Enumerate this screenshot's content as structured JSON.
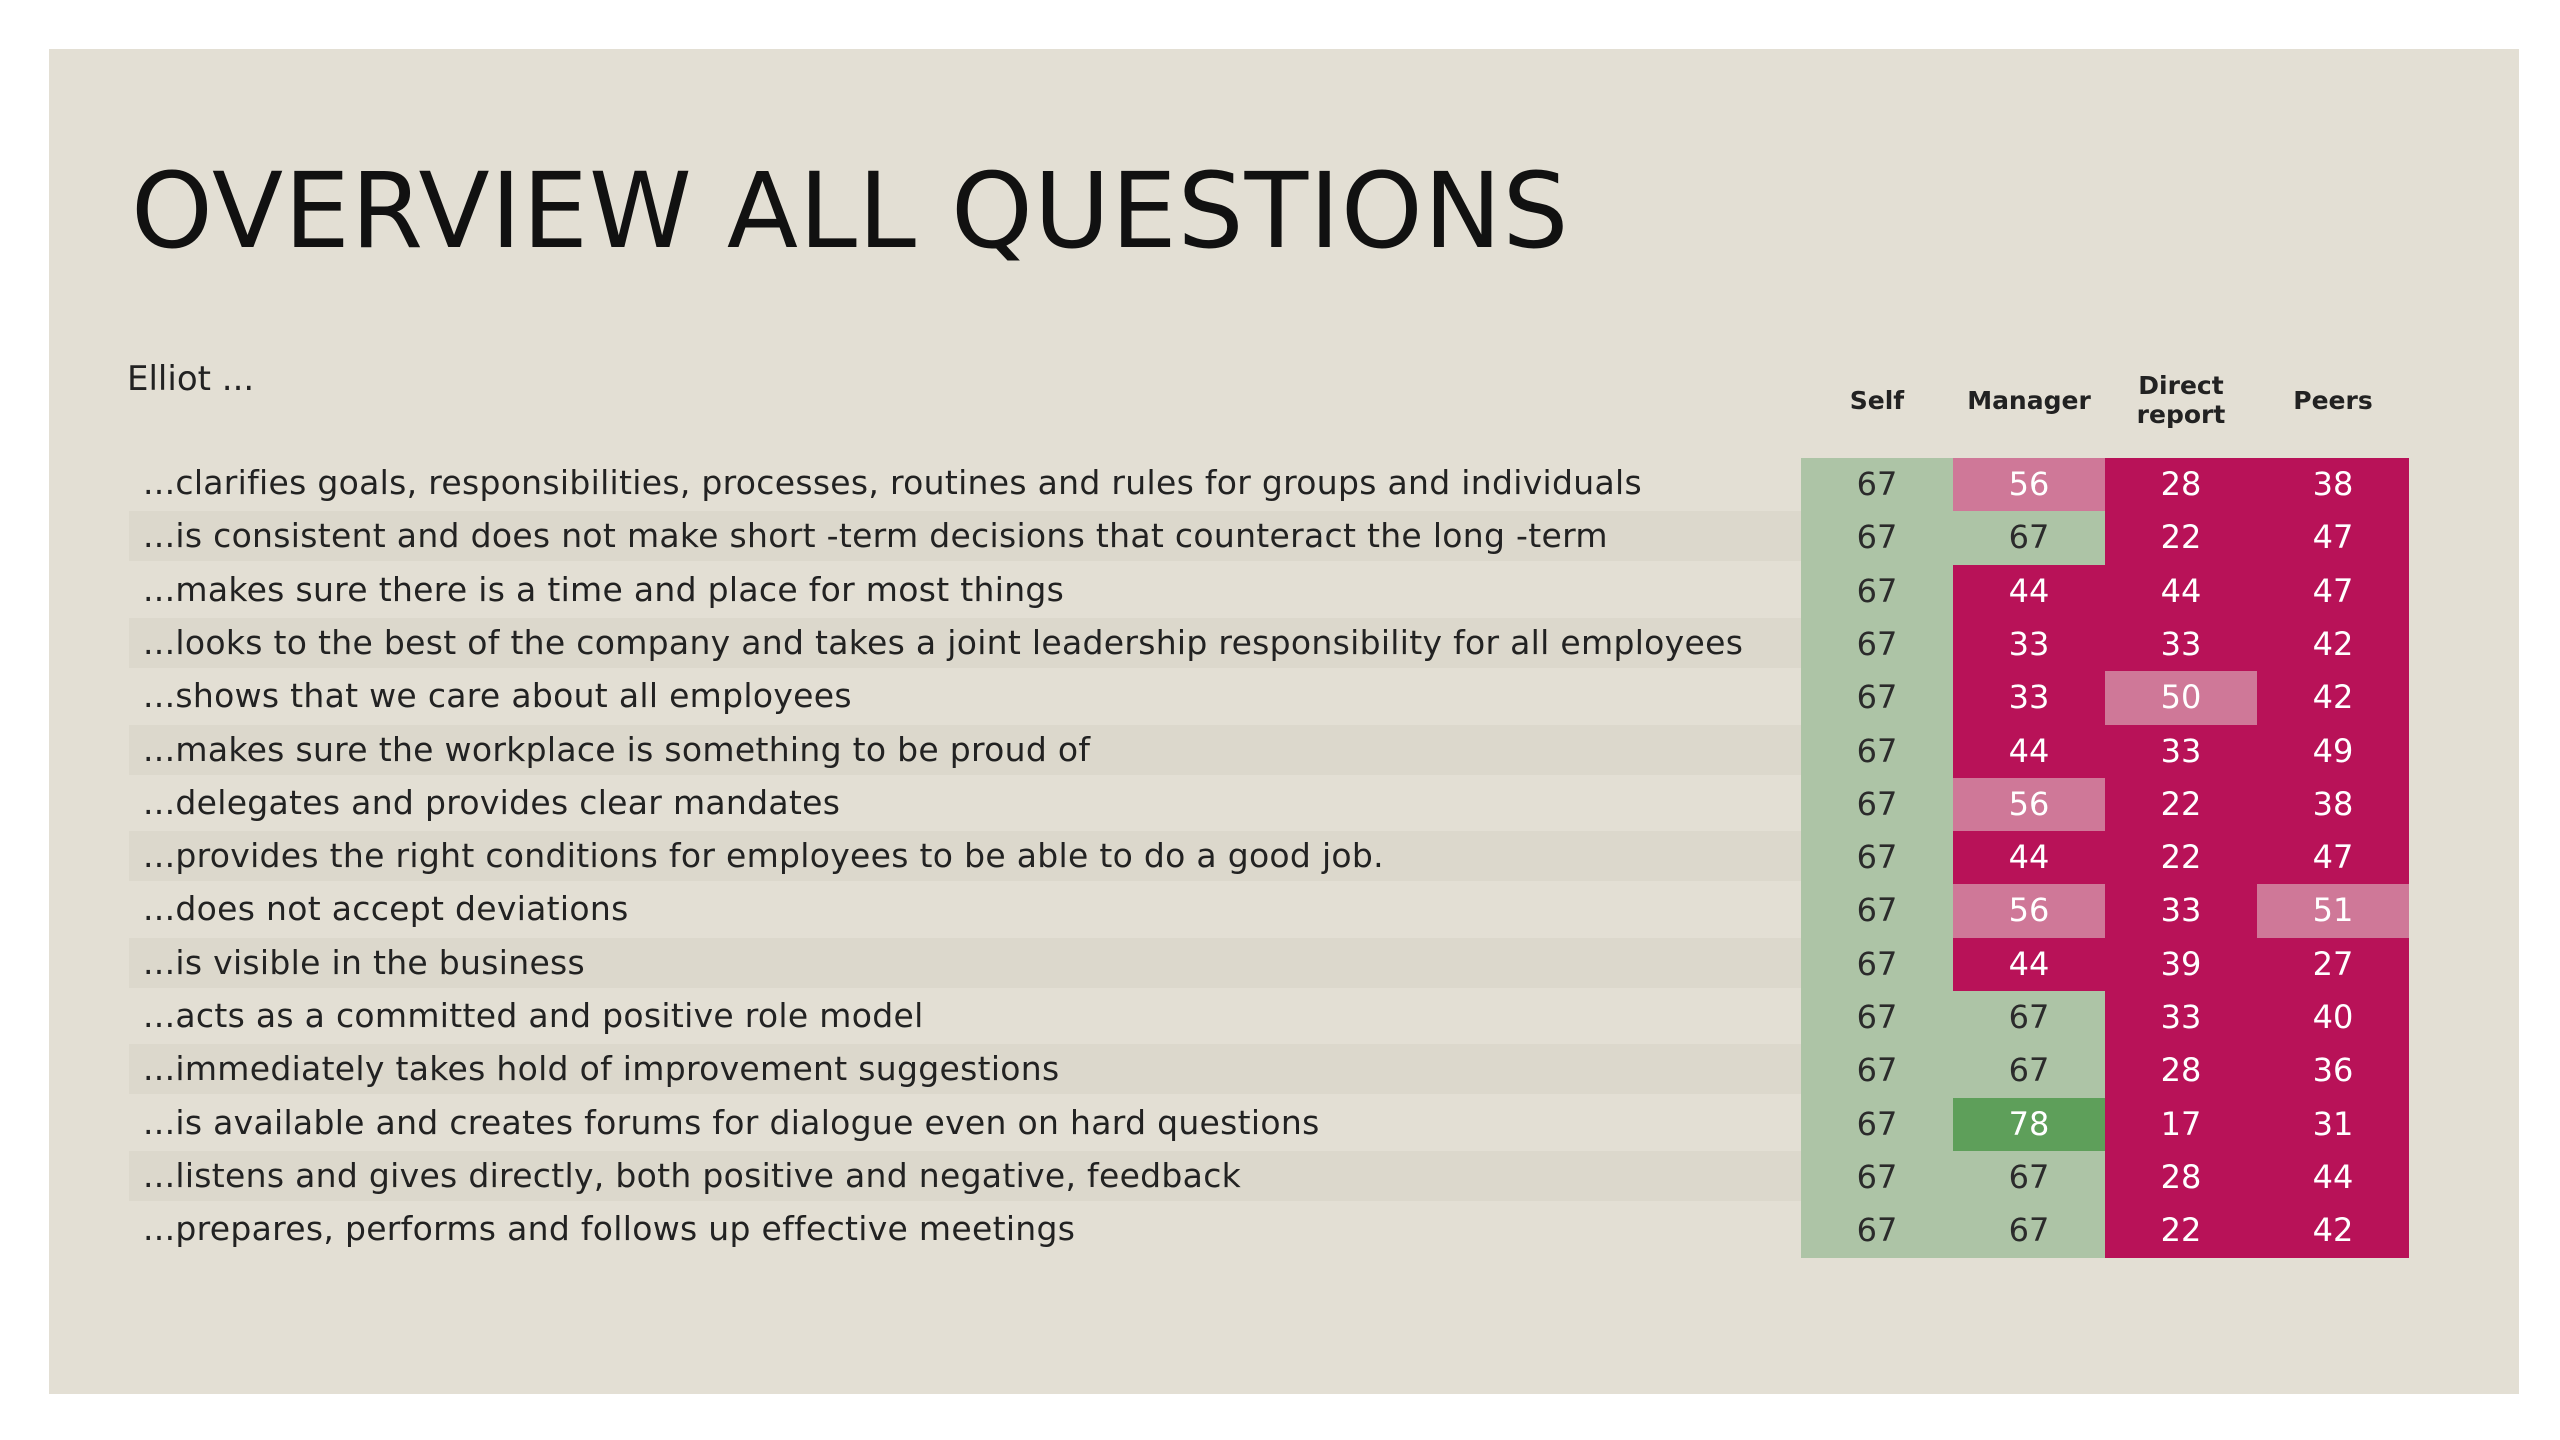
{
  "title": "OVERVIEW ALL QUESTIONS",
  "subject": "Elliot ...",
  "colors": {
    "green_light": "#adc4a6",
    "green_dark": "#5e9f5a",
    "pink_light": "#cf7898",
    "crimson": "#b81258"
  },
  "chart_data": {
    "type": "heatmap",
    "title": "OVERVIEW ALL QUESTIONS",
    "columns": [
      "Self",
      "Manager",
      "Direct report",
      "Peers"
    ],
    "rows": [
      {
        "label": "...clarifies goals, responsibilities, processes, routines and rules for groups and individuals",
        "values": [
          67,
          56,
          28,
          38
        ]
      },
      {
        "label": "...is consistent and does not make short -term decisions that counteract the long -term",
        "values": [
          67,
          67,
          22,
          47
        ]
      },
      {
        "label": "...makes sure there is a time and place for most things",
        "values": [
          67,
          44,
          44,
          47
        ]
      },
      {
        "label": "...looks to the best of the company and takes a joint leadership responsibility for all employees",
        "values": [
          67,
          33,
          33,
          42
        ]
      },
      {
        "label": "...shows that we care about all employees",
        "values": [
          67,
          33,
          50,
          42
        ]
      },
      {
        "label": "...makes sure the workplace is something to be proud of",
        "values": [
          67,
          44,
          33,
          49
        ]
      },
      {
        "label": "...delegates and provides clear mandates",
        "values": [
          67,
          56,
          22,
          38
        ]
      },
      {
        "label": "...provides the right conditions for employees to be able to do a good job.",
        "values": [
          67,
          44,
          22,
          47
        ]
      },
      {
        "label": "...does not accept deviations",
        "values": [
          67,
          56,
          33,
          51
        ]
      },
      {
        "label": "...is visible in the business",
        "values": [
          67,
          44,
          39,
          27
        ]
      },
      {
        "label": "...acts as a committed and positive role model",
        "values": [
          67,
          67,
          33,
          40
        ]
      },
      {
        "label": "...immediately takes hold of improvement suggestions",
        "values": [
          67,
          67,
          28,
          36
        ]
      },
      {
        "label": "...is available and creates forums for dialogue even on hard questions",
        "values": [
          67,
          78,
          17,
          31
        ]
      },
      {
        "label": "...listens and gives directly, both positive and negative, feedback",
        "values": [
          67,
          67,
          28,
          44
        ]
      },
      {
        "label": "...prepares, performs and follows up effective meetings",
        "values": [
          67,
          67,
          22,
          42
        ]
      }
    ]
  }
}
